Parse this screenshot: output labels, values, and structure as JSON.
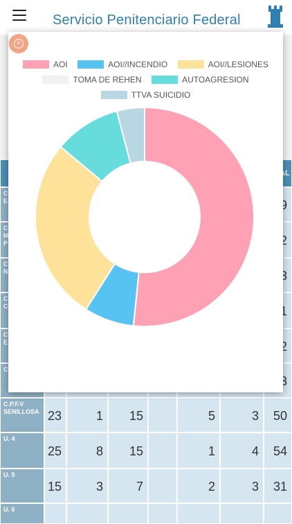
{
  "header": {
    "title": "Servicio Penitenciario Federal"
  },
  "icons": {
    "menu": "hamburger-icon",
    "logo": "tower-icon",
    "close": "close-icon"
  },
  "colors": {
    "title": "#2f7fb0",
    "close": "#f2a483",
    "row_header": "#8fb1c5",
    "cell": "#d5e6f1"
  },
  "chart_data": {
    "type": "pie",
    "categories": [
      "AOI",
      "AOI//INCENDIO",
      "AOI//LESIONES",
      "TOMA DE REHEN",
      "AUTOAGRESION",
      "TTVA SUICIDIO"
    ],
    "values": [
      63,
      9,
      33,
      0,
      12,
      5
    ],
    "colors": [
      "#ffa1b5",
      "#56c3f2",
      "#ffe29a",
      "#f1f1f1",
      "#67dcdc",
      "#b9d7e3"
    ],
    "legend_position": "top"
  },
  "table": {
    "rows": [
      {
        "label": "C\nE",
        "values": [
          "",
          "",
          "",
          "",
          "",
          "9"
        ]
      },
      {
        "label": "C\nM\nP",
        "values": [
          "",
          "",
          "",
          "",
          "",
          "2"
        ]
      },
      {
        "label": "C\nN",
        "values": [
          "",
          "",
          "",
          "",
          "",
          "3"
        ]
      },
      {
        "label": "C\nC",
        "values": [
          "",
          "",
          "",
          "",
          "",
          "1"
        ]
      },
      {
        "label": "C\nE",
        "values": [
          "",
          "",
          "",
          "",
          "",
          "2"
        ]
      },
      {
        "label": "C",
        "values": [
          "",
          "",
          "",
          "",
          "",
          "3"
        ]
      },
      {
        "label": "C.P.F.V SENILLOSA",
        "values": [
          "23",
          "1",
          "15",
          "5",
          "3",
          "50"
        ]
      },
      {
        "label": "U. 4",
        "values": [
          "25",
          "8",
          "15",
          "1",
          "4",
          "54"
        ]
      },
      {
        "label": "U. 5",
        "values": [
          "15",
          "3",
          "7",
          "2",
          "3",
          "31"
        ]
      },
      {
        "label": "U. 6",
        "values": [
          "",
          "",
          "",
          "",
          "",
          ""
        ]
      }
    ],
    "header_fragment": "AL"
  }
}
